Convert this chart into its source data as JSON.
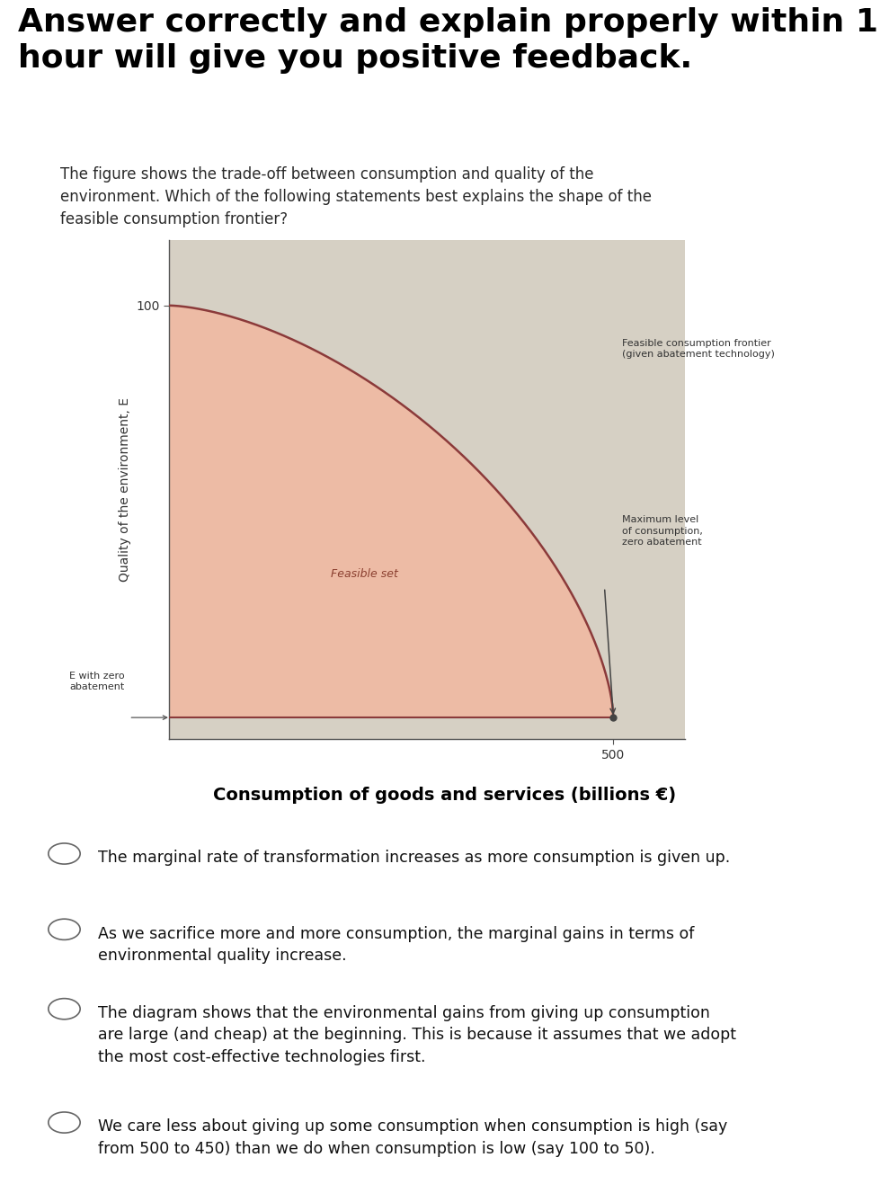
{
  "title_text": "Answer correctly and explain properly within 1\nhour will give you positive feedback.",
  "title_fontsize": 26,
  "title_fontweight": "bold",
  "question_text": "The figure shows the trade-off between consumption and quality of the\nenvironment. Which of the following statements best explains the shape of the\nfeasible consumption frontier?",
  "question_fontsize": 12,
  "xlabel": "Consumption of goods and services (billions €)",
  "xlabel_fontsize": 14,
  "xlabel_fontweight": "bold",
  "ylabel": "Quality of the environment, E",
  "ylabel_fontsize": 10,
  "e_zero_abatement": 5,
  "max_consumption": 500,
  "frontier_label": "Feasible consumption frontier\n(given abatement technology)",
  "max_consumption_label": "Maximum level\nof consumption,\nzero abatement",
  "feasible_set_label": "Feasible set",
  "e_zero_label": "E with zero\nabatement",
  "fill_color": "#f2b8a0",
  "frontier_color": "#8b3a3a",
  "panel_bg": "#d6d0c4",
  "answer_bg": "#e8e4d8",
  "answer_options": [
    "The marginal rate of transformation increases as more consumption is given up.",
    "As we sacrifice more and more consumption, the marginal gains in terms of\nenvironmental quality increase.",
    "The diagram shows that the environmental gains from giving up consumption\nare large (and cheap) at the beginning. This is because it assumes that we adopt\nthe most cost-effective technologies first.",
    "We care less about giving up some consumption when consumption is high (say\nfrom 500 to 450) than we do when consumption is low (say 100 to 50)."
  ],
  "answer_fontsize": 12.5,
  "top_bg": "#ffffff"
}
